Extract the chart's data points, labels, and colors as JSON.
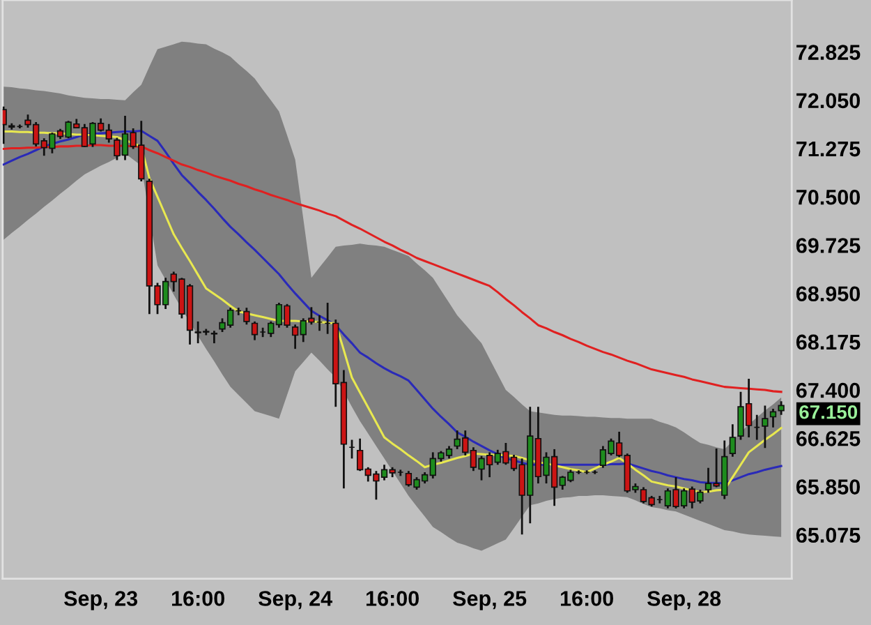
{
  "chart_data": {
    "type": "candlestick",
    "categories": [
      null,
      null,
      null,
      null,
      null,
      null,
      null,
      null,
      null,
      null,
      null,
      null,
      "Sep, 23",
      null,
      null,
      null,
      null,
      null,
      null,
      null,
      null,
      null,
      null,
      null,
      "16:00",
      null,
      null,
      null,
      null,
      null,
      null,
      null,
      null,
      null,
      null,
      null,
      "Sep, 24",
      null,
      null,
      null,
      null,
      null,
      null,
      null,
      null,
      null,
      null,
      null,
      "16:00",
      null,
      null,
      null,
      null,
      null,
      null,
      null,
      null,
      null,
      null,
      null,
      "Sep, 25",
      null,
      null,
      null,
      null,
      null,
      null,
      null,
      null,
      null,
      null,
      null,
      "16:00",
      null,
      null,
      null,
      null,
      null,
      null,
      null,
      null,
      null,
      null,
      null,
      "Sep, 28",
      null,
      null,
      null,
      null,
      null,
      null,
      null,
      null,
      null,
      null,
      null,
      null
    ],
    "ohlc": [
      [
        71.9,
        71.95,
        71.35,
        71.66
      ],
      [
        71.64,
        71.68,
        71.58,
        71.62
      ],
      [
        71.63,
        71.66,
        71.6,
        71.63
      ],
      [
        71.73,
        71.82,
        71.61,
        71.66
      ],
      [
        71.66,
        71.7,
        71.31,
        71.35
      ],
      [
        71.4,
        71.44,
        71.16,
        71.29
      ],
      [
        71.28,
        71.53,
        71.2,
        71.51
      ],
      [
        71.56,
        71.59,
        71.43,
        71.47
      ],
      [
        71.46,
        71.72,
        71.44,
        71.7
      ],
      [
        71.67,
        71.75,
        71.6,
        71.61
      ],
      [
        71.61,
        71.67,
        71.3,
        71.31
      ],
      [
        71.35,
        71.7,
        71.3,
        71.68
      ],
      [
        71.68,
        71.76,
        71.55,
        71.57
      ],
      [
        71.57,
        71.67,
        71.37,
        71.43
      ],
      [
        71.41,
        71.45,
        71.09,
        71.16
      ],
      [
        71.17,
        71.8,
        71.09,
        71.51
      ],
      [
        71.53,
        71.6,
        71.27,
        71.31
      ],
      [
        71.33,
        71.72,
        70.75,
        70.79
      ],
      [
        70.75,
        70.79,
        68.62,
        69.07
      ],
      [
        69.07,
        69.12,
        68.62,
        68.77
      ],
      [
        68.77,
        69.2,
        68.7,
        69.14
      ],
      [
        69.26,
        69.3,
        68.98,
        69.14
      ],
      [
        69.18,
        69.2,
        68.55,
        68.62
      ],
      [
        69.07,
        69.1,
        68.13,
        68.36
      ],
      [
        68.33,
        68.5,
        68.15,
        68.32
      ],
      [
        68.34,
        68.38,
        68.28,
        68.33
      ],
      [
        68.31,
        68.35,
        68.15,
        68.3
      ],
      [
        68.38,
        68.55,
        68.33,
        68.48
      ],
      [
        68.44,
        68.72,
        68.4,
        68.68
      ],
      [
        68.67,
        68.72,
        68.6,
        68.67
      ],
      [
        68.66,
        68.72,
        68.45,
        68.5
      ],
      [
        68.47,
        68.5,
        68.2,
        68.29
      ],
      [
        68.33,
        68.4,
        68.25,
        68.33
      ],
      [
        68.31,
        68.5,
        68.25,
        68.47
      ],
      [
        68.45,
        68.8,
        68.4,
        68.77
      ],
      [
        68.75,
        68.78,
        68.4,
        68.44
      ],
      [
        68.41,
        68.45,
        68.06,
        68.28
      ],
      [
        68.29,
        68.55,
        68.17,
        68.51
      ],
      [
        68.55,
        68.73,
        68.45,
        68.49
      ],
      [
        68.49,
        68.6,
        68.35,
        68.49
      ],
      [
        68.47,
        68.8,
        68.3,
        68.47
      ],
      [
        68.47,
        68.53,
        67.13,
        67.5
      ],
      [
        67.52,
        67.72,
        65.82,
        66.53
      ],
      [
        66.48,
        66.6,
        66.3,
        66.48
      ],
      [
        66.43,
        66.62,
        66.1,
        66.12
      ],
      [
        66.13,
        66.16,
        65.93,
        66.03
      ],
      [
        66.05,
        66.1,
        65.64,
        65.94
      ],
      [
        66.0,
        66.2,
        65.95,
        66.12
      ],
      [
        66.12,
        66.16,
        66.0,
        66.07
      ],
      [
        66.08,
        66.12,
        66.02,
        66.08
      ],
      [
        66.06,
        66.1,
        65.85,
        65.88
      ],
      [
        65.84,
        66.0,
        65.8,
        65.96
      ],
      [
        65.94,
        66.08,
        65.9,
        66.04
      ],
      [
        66.03,
        66.4,
        65.98,
        66.3
      ],
      [
        66.3,
        66.42,
        66.25,
        66.39
      ],
      [
        66.35,
        66.5,
        66.3,
        66.45
      ],
      [
        66.5,
        66.75,
        66.45,
        66.61
      ],
      [
        66.63,
        66.75,
        66.35,
        66.4
      ],
      [
        66.43,
        66.48,
        66.1,
        66.16
      ],
      [
        66.13,
        66.34,
        65.95,
        66.3
      ],
      [
        66.35,
        66.4,
        66.0,
        66.2
      ],
      [
        66.24,
        66.44,
        66.2,
        66.38
      ],
      [
        66.41,
        66.55,
        66.2,
        66.23
      ],
      [
        66.32,
        66.36,
        66.1,
        66.14
      ],
      [
        66.2,
        66.3,
        65.08,
        65.71
      ],
      [
        65.71,
        67.13,
        65.26,
        66.66
      ],
      [
        66.62,
        67.13,
        65.9,
        66.01
      ],
      [
        66.03,
        66.4,
        65.9,
        66.32
      ],
      [
        66.33,
        66.45,
        65.54,
        65.84
      ],
      [
        65.87,
        66.02,
        65.8,
        66.0
      ],
      [
        65.95,
        66.12,
        65.92,
        66.08
      ],
      [
        66.08,
        66.11,
        66.05,
        66.08
      ],
      [
        66.08,
        66.11,
        66.05,
        66.08
      ],
      [
        66.08,
        66.11,
        66.05,
        66.08
      ],
      [
        66.19,
        66.5,
        66.15,
        66.44
      ],
      [
        66.38,
        66.62,
        66.35,
        66.58
      ],
      [
        66.55,
        66.73,
        66.32,
        66.35
      ],
      [
        66.35,
        66.38,
        65.75,
        65.78
      ],
      [
        65.8,
        65.9,
        65.75,
        65.85
      ],
      [
        65.8,
        65.84,
        65.58,
        65.61
      ],
      [
        65.67,
        65.7,
        65.53,
        65.56
      ],
      [
        65.64,
        65.7,
        65.58,
        65.64
      ],
      [
        65.54,
        65.82,
        65.5,
        65.78
      ],
      [
        65.8,
        66.0,
        65.5,
        65.53
      ],
      [
        65.54,
        65.82,
        65.5,
        65.78
      ],
      [
        65.81,
        65.85,
        65.5,
        65.6
      ],
      [
        65.62,
        65.8,
        65.58,
        65.76
      ],
      [
        65.8,
        66.15,
        65.75,
        65.9
      ],
      [
        65.9,
        66.46,
        65.84,
        65.86
      ],
      [
        65.71,
        66.59,
        65.65,
        66.33
      ],
      [
        66.38,
        66.85,
        66.33,
        66.64
      ],
      [
        66.66,
        67.37,
        66.6,
        67.13
      ],
      [
        67.18,
        67.58,
        66.64,
        66.83
      ],
      [
        66.8,
        67.0,
        66.6,
        66.8
      ],
      [
        66.82,
        67.15,
        66.47,
        66.94
      ],
      [
        66.97,
        67.1,
        66.8,
        67.05
      ],
      [
        67.07,
        67.22,
        67.0,
        67.15
      ]
    ],
    "colors": [
      "#cc1414",
      "#cc1414",
      "#111111",
      "#cc1414",
      "#cc1414",
      "#cc1414",
      "#1e8c1e",
      "#cc1414",
      "#1e8c1e",
      "#cc1414",
      "#cc1414",
      "#1e8c1e",
      "#cc1414",
      "#cc1414",
      "#cc1414",
      "#1e8c1e",
      "#cc1414",
      "#cc1414",
      "#cc1414",
      "#cc1414",
      "#1e8c1e",
      "#cc1414",
      "#cc1414",
      "#cc1414",
      "#cc1414",
      "#cc1414",
      "#cc1414",
      "#1e8c1e",
      "#1e8c1e",
      "#111111",
      "#cc1414",
      "#cc1414",
      "#111111",
      "#1e8c1e",
      "#1e8c1e",
      "#cc1414",
      "#cc1414",
      "#1e8c1e",
      "#cc1414",
      "#111111",
      "#111111",
      "#cc1414",
      "#cc1414",
      "#111111",
      "#cc1414",
      "#cc1414",
      "#cc1414",
      "#1e8c1e",
      "#cc1414",
      "#111111",
      "#cc1414",
      "#1e8c1e",
      "#1e8c1e",
      "#1e8c1e",
      "#1e8c1e",
      "#1e8c1e",
      "#1e8c1e",
      "#cc1414",
      "#cc1414",
      "#1e8c1e",
      "#cc1414",
      "#1e8c1e",
      "#cc1414",
      "#cc1414",
      "#cc1414",
      "#1e8c1e",
      "#cc1414",
      "#1e8c1e",
      "#cc1414",
      "#1e8c1e",
      "#1e8c1e",
      "#111111",
      "#111111",
      "#111111",
      "#1e8c1e",
      "#1e8c1e",
      "#cc1414",
      "#cc1414",
      "#1e8c1e",
      "#cc1414",
      "#cc1414",
      "#111111",
      "#1e8c1e",
      "#cc1414",
      "#1e8c1e",
      "#cc1414",
      "#1e8c1e",
      "#1e8c1e",
      "#cc1414",
      "#1e8c1e",
      "#1e8c1e",
      "#1e8c1e",
      "#cc1414",
      "#111111",
      "#1e8c1e",
      "#1e8c1e",
      "#1e8c1e"
    ],
    "series": [
      {
        "type": "line",
        "color": "#2a2ab8",
        "values": [
          71.02,
          71.08,
          71.14,
          71.19,
          71.25,
          71.31,
          71.35,
          71.39,
          71.42,
          71.46,
          71.5,
          71.51,
          71.52,
          71.53,
          71.54,
          71.55,
          71.55,
          71.56,
          71.48,
          71.4,
          71.22,
          71.03,
          70.85,
          70.72,
          70.58,
          70.45,
          70.31,
          70.16,
          70.02,
          69.9,
          69.77,
          69.65,
          69.52,
          69.39,
          69.26,
          69.1,
          68.95,
          68.81,
          68.67,
          68.59,
          68.52,
          68.44,
          68.29,
          68.15,
          68.0,
          67.92,
          67.83,
          67.75,
          67.68,
          67.62,
          67.55,
          67.4,
          67.25,
          67.1,
          66.97,
          66.85,
          66.72,
          66.65,
          66.57,
          66.5,
          66.43,
          66.37,
          66.3,
          66.27,
          66.23,
          66.2,
          66.2,
          66.2,
          66.2,
          66.2,
          66.2,
          66.2,
          66.2,
          66.2,
          66.2,
          66.21,
          66.21,
          66.22,
          66.18,
          66.14,
          66.1,
          66.07,
          66.03,
          66.0,
          65.97,
          65.95,
          65.92,
          65.91,
          65.91,
          65.9,
          65.95,
          66.0,
          66.05,
          66.08,
          66.12,
          66.15,
          66.18
        ],
        "upper": [
          72.27,
          72.26,
          72.24,
          72.23,
          72.21,
          72.2,
          72.18,
          72.16,
          72.13,
          72.11,
          72.09,
          72.08,
          72.07,
          72.07,
          72.06,
          72.05,
          72.18,
          72.3,
          72.59,
          72.87,
          72.91,
          72.95,
          72.99,
          72.98,
          72.96,
          72.95,
          72.88,
          72.82,
          72.75,
          72.63,
          72.52,
          72.4,
          72.22,
          72.05,
          71.87,
          71.49,
          71.1,
          70.15,
          69.2,
          69.37,
          69.53,
          69.7,
          69.72,
          69.73,
          69.75,
          69.73,
          69.72,
          69.7,
          69.65,
          69.6,
          69.55,
          69.43,
          69.32,
          69.2,
          69.0,
          68.8,
          68.6,
          68.45,
          68.3,
          68.15,
          67.9,
          67.65,
          67.4,
          67.29,
          67.17,
          67.06,
          67.04,
          67.02,
          67.0,
          66.99,
          66.99,
          66.98,
          66.97,
          66.97,
          66.96,
          66.95,
          66.95,
          66.94,
          66.94,
          66.94,
          66.94,
          66.89,
          66.85,
          66.8,
          66.72,
          66.63,
          66.55,
          66.52,
          66.48,
          66.45,
          66.58,
          66.72,
          66.85,
          66.96,
          67.07,
          67.17,
          67.28
        ],
        "lower": [
          69.81,
          69.92,
          70.02,
          70.13,
          70.23,
          70.34,
          70.44,
          70.55,
          70.65,
          70.76,
          70.86,
          70.93,
          71.0,
          71.06,
          71.13,
          71.2,
          71.1,
          71.0,
          70.2,
          69.4,
          69.17,
          68.93,
          68.7,
          68.49,
          68.27,
          68.06,
          67.86,
          67.65,
          67.45,
          67.32,
          67.19,
          67.06,
          67.02,
          66.98,
          66.94,
          67.32,
          67.7,
          67.85,
          68.0,
          67.87,
          67.73,
          67.6,
          67.37,
          67.13,
          66.9,
          66.7,
          66.5,
          66.3,
          66.1,
          65.9,
          65.7,
          65.53,
          65.37,
          65.2,
          65.12,
          65.03,
          64.95,
          64.91,
          64.86,
          64.82,
          64.88,
          64.94,
          65.0,
          65.18,
          65.37,
          65.55,
          65.58,
          65.62,
          65.65,
          65.67,
          65.68,
          65.7,
          65.7,
          65.71,
          65.71,
          65.7,
          65.69,
          65.68,
          65.63,
          65.57,
          65.52,
          65.5,
          65.47,
          65.45,
          65.4,
          65.35,
          65.3,
          65.25,
          65.2,
          65.15,
          65.13,
          65.1,
          65.08,
          65.07,
          65.06,
          65.05,
          65.04
        ]
      },
      {
        "type": "line",
        "color": "#e02020",
        "values": [
          71.27,
          71.28,
          71.28,
          71.29,
          71.29,
          71.3,
          71.3,
          71.31,
          71.31,
          71.32,
          71.32,
          71.33,
          71.33,
          71.32,
          71.32,
          71.32,
          71.31,
          71.31,
          71.25,
          71.2,
          71.14,
          71.08,
          71.02,
          70.98,
          70.93,
          70.89,
          70.84,
          70.8,
          70.76,
          70.71,
          70.67,
          70.62,
          70.58,
          70.53,
          70.49,
          70.45,
          70.4,
          70.36,
          70.32,
          70.28,
          70.23,
          70.19,
          70.12,
          70.05,
          69.99,
          69.92,
          69.85,
          69.78,
          69.72,
          69.65,
          69.59,
          69.52,
          69.47,
          69.42,
          69.37,
          69.32,
          69.27,
          69.22,
          69.17,
          69.12,
          69.07,
          68.97,
          68.86,
          68.76,
          68.65,
          68.55,
          68.44,
          68.39,
          68.33,
          68.28,
          68.22,
          68.17,
          68.11,
          68.06,
          68.01,
          67.97,
          67.92,
          67.87,
          67.83,
          67.78,
          67.73,
          67.7,
          67.67,
          67.64,
          67.61,
          67.57,
          67.54,
          67.51,
          67.48,
          67.45,
          67.44,
          67.43,
          67.42,
          67.41,
          67.4,
          67.38,
          67.37
        ]
      },
      {
        "type": "line",
        "color": "#e8e850",
        "values": [
          71.55,
          71.55,
          71.54,
          71.54,
          71.53,
          71.53,
          71.52,
          71.52,
          71.51,
          71.5,
          71.5,
          71.49,
          71.48,
          71.47,
          71.46,
          71.41,
          71.36,
          71.31,
          70.8,
          70.5,
          70.2,
          69.9,
          69.68,
          69.47,
          69.25,
          69.03,
          68.94,
          68.85,
          68.75,
          68.66,
          68.63,
          68.6,
          68.57,
          68.54,
          68.51,
          68.51,
          68.51,
          68.5,
          68.5,
          68.49,
          68.48,
          68.47,
          68.04,
          67.6,
          67.36,
          67.12,
          66.88,
          66.64,
          66.54,
          66.45,
          66.35,
          66.26,
          66.16,
          66.2,
          66.23,
          66.27,
          66.31,
          66.34,
          66.38,
          66.37,
          66.36,
          66.36,
          66.35,
          66.34,
          66.31,
          66.27,
          66.24,
          66.22,
          66.19,
          66.16,
          66.13,
          66.11,
          66.08,
          66.14,
          66.2,
          66.25,
          66.31,
          66.22,
          66.12,
          66.03,
          65.93,
          65.9,
          65.87,
          65.85,
          65.82,
          65.79,
          65.76,
          65.77,
          65.79,
          65.8,
          66.0,
          66.2,
          66.4,
          66.5,
          66.6,
          66.69,
          66.79
        ]
      }
    ],
    "ylim": [
      64.37,
      73.66
    ],
    "yticks": [
      {
        "value": 65.075,
        "label": "65.075"
      },
      {
        "value": 65.85,
        "label": "65.850"
      },
      {
        "value": 66.625,
        "label": "66.625"
      },
      {
        "value": 67.4,
        "label": "67.400"
      },
      {
        "value": 68.175,
        "label": "68.175"
      },
      {
        "value": 68.95,
        "label": "68.950"
      },
      {
        "value": 69.725,
        "label": "69.725"
      },
      {
        "value": 70.5,
        "label": "70.500"
      },
      {
        "value": 71.275,
        "label": "71.275"
      },
      {
        "value": 72.05,
        "label": "72.050"
      },
      {
        "value": 72.825,
        "label": "72.825"
      }
    ],
    "annotations": [
      "67.150"
    ],
    "grid": false,
    "legend": false
  }
}
